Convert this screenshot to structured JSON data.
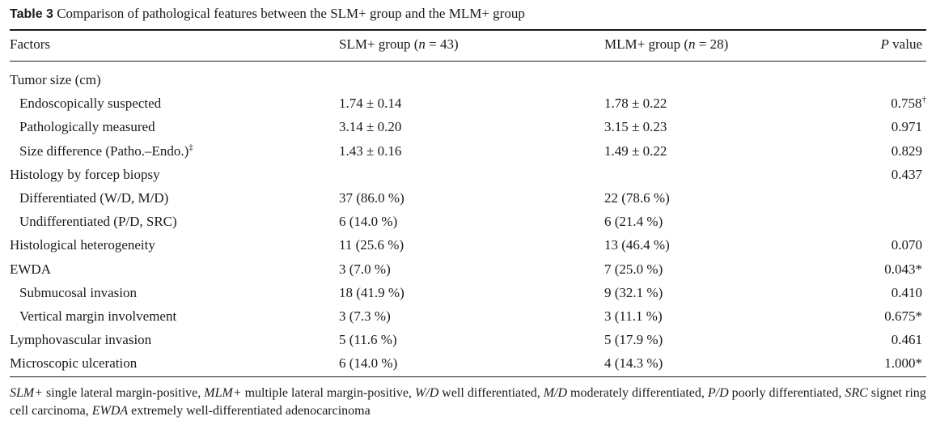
{
  "caption": {
    "label": "Table 3",
    "text": "Comparison of pathological features between the SLM+ group and the MLM+ group"
  },
  "header": {
    "factors": "Factors",
    "slm": "SLM+ group (n = 43)",
    "mlm": "MLM+ group (n = 28)",
    "p_italic": "P",
    "p_rest": " value"
  },
  "rows": [
    {
      "label": "Tumor size (cm)",
      "sup": "",
      "slm": "",
      "mlm": "",
      "p": "",
      "p_sup": ""
    },
    {
      "label": "Endoscopically suspected",
      "sup": "",
      "slm": "1.74 ± 0.14",
      "mlm": "1.78 ± 0.22",
      "p": "0.758",
      "p_sup": "†"
    },
    {
      "label": "Pathologically measured",
      "sup": "",
      "slm": "3.14 ± 0.20",
      "mlm": "3.15 ± 0.23",
      "p": "0.971",
      "p_sup": ""
    },
    {
      "label": "Size difference (Patho.–Endo.)",
      "sup": "‡",
      "slm": "1.43 ± 0.16",
      "mlm": "1.49 ± 0.22",
      "p": "0.829",
      "p_sup": ""
    },
    {
      "label": "Histology by forcep biopsy",
      "sup": "",
      "slm": "",
      "mlm": "",
      "p": "0.437",
      "p_sup": ""
    },
    {
      "label": "Differentiated (W/D, M/D)",
      "sup": "",
      "slm": "37 (86.0 %)",
      "mlm": "22 (78.6 %)",
      "p": "",
      "p_sup": ""
    },
    {
      "label": "Undifferentiated (P/D, SRC)",
      "sup": "",
      "slm": "6 (14.0 %)",
      "mlm": "6 (21.4 %)",
      "p": "",
      "p_sup": ""
    },
    {
      "label": "Histological heterogeneity",
      "sup": "",
      "slm": "11 (25.6 %)",
      "mlm": "13 (46.4 %)",
      "p": "0.070",
      "p_sup": ""
    },
    {
      "label": "EWDA",
      "sup": "",
      "slm": "3 (7.0 %)",
      "mlm": "7 (25.0 %)",
      "p": "0.043*",
      "p_sup": ""
    },
    {
      "label": "Submucosal invasion",
      "sup": "",
      "slm": "18 (41.9 %)",
      "mlm": "9 (32.1 %)",
      "p": "0.410",
      "p_sup": ""
    },
    {
      "label": "Vertical margin involvement",
      "sup": "",
      "slm": "3 (7.3 %)",
      "mlm": "3 (11.1 %)",
      "p": "0.675*",
      "p_sup": ""
    },
    {
      "label": "Lymphovascular invasion",
      "sup": "",
      "slm": "5 (11.6 %)",
      "mlm": "5 (17.9 %)",
      "p": "0.461",
      "p_sup": ""
    },
    {
      "label": "Microscopic ulceration",
      "sup": "",
      "slm": "6 (14.0 %)",
      "mlm": "4 (14.3 %)",
      "p": "1.000*",
      "p_sup": ""
    }
  ],
  "footnote": {
    "items": [
      {
        "abbr": "SLM+",
        "def": " single lateral margin-positive, "
      },
      {
        "abbr": "MLM+",
        "def": " multiple lateral margin-positive, "
      },
      {
        "abbr": "W/D",
        "def": " well differentiated, "
      },
      {
        "abbr": "M/D",
        "def": " moderately differentiated, "
      },
      {
        "abbr": "P/D",
        "def": " poorly differentiated, "
      },
      {
        "abbr": "SRC",
        "def": " signet ring cell carcinoma, "
      },
      {
        "abbr": "EWDA",
        "def": " extremely well-differentiated adenocarcinoma"
      }
    ]
  }
}
